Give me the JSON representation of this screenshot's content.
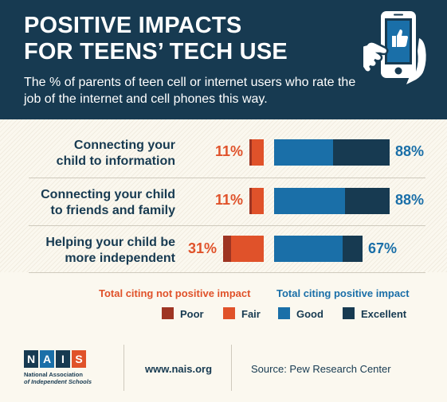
{
  "header": {
    "title_line1": "POSITIVE IMPACTS",
    "title_line2": "FOR TEENS’ TECH USE",
    "subtitle": "The % of parents of teen cell or internet users who rate the job of the internet and cell phones this way."
  },
  "chart_data": {
    "type": "bar",
    "stacked": true,
    "orientation": "horizontal",
    "categories": [
      "Connecting your child to information",
      "Connecting your child to friends and family",
      "Helping your child be more independent"
    ],
    "category_lines": [
      [
        "Connecting your",
        "child to information"
      ],
      [
        "Connecting your child",
        "to friends and family"
      ],
      [
        "Helping your child be",
        "more independent"
      ]
    ],
    "series": [
      {
        "name": "Poor",
        "group": "negative",
        "values": [
          2,
          2,
          6
        ],
        "color": "#9e3523"
      },
      {
        "name": "Fair",
        "group": "negative",
        "values": [
          9,
          9,
          25
        ],
        "color": "#e0522a"
      },
      {
        "name": "Good",
        "group": "positive",
        "values": [
          45,
          54,
          52
        ],
        "color": "#1a6fa8"
      },
      {
        "name": "Excellent",
        "group": "positive",
        "values": [
          43,
          34,
          15
        ],
        "color": "#173a51"
      }
    ],
    "negative_totals": [
      "11%",
      "11%",
      "31%"
    ],
    "positive_totals": [
      "88%",
      "88%",
      "67%"
    ]
  },
  "legend": {
    "negative_heading": "Total citing not positive impact",
    "positive_heading": "Total citing positive impact",
    "negative_color": "#e0522a",
    "positive_color": "#1a6fa8"
  },
  "footer": {
    "logo_letters": [
      "N",
      "A",
      "I",
      "S"
    ],
    "logo_name_line1": "National Association",
    "logo_name_line2": "of Independent Schools",
    "url": "www.nais.org",
    "source": "Source: Pew Research Center"
  },
  "icons": {
    "header_icon": "phone-thumbs-up-icon"
  }
}
